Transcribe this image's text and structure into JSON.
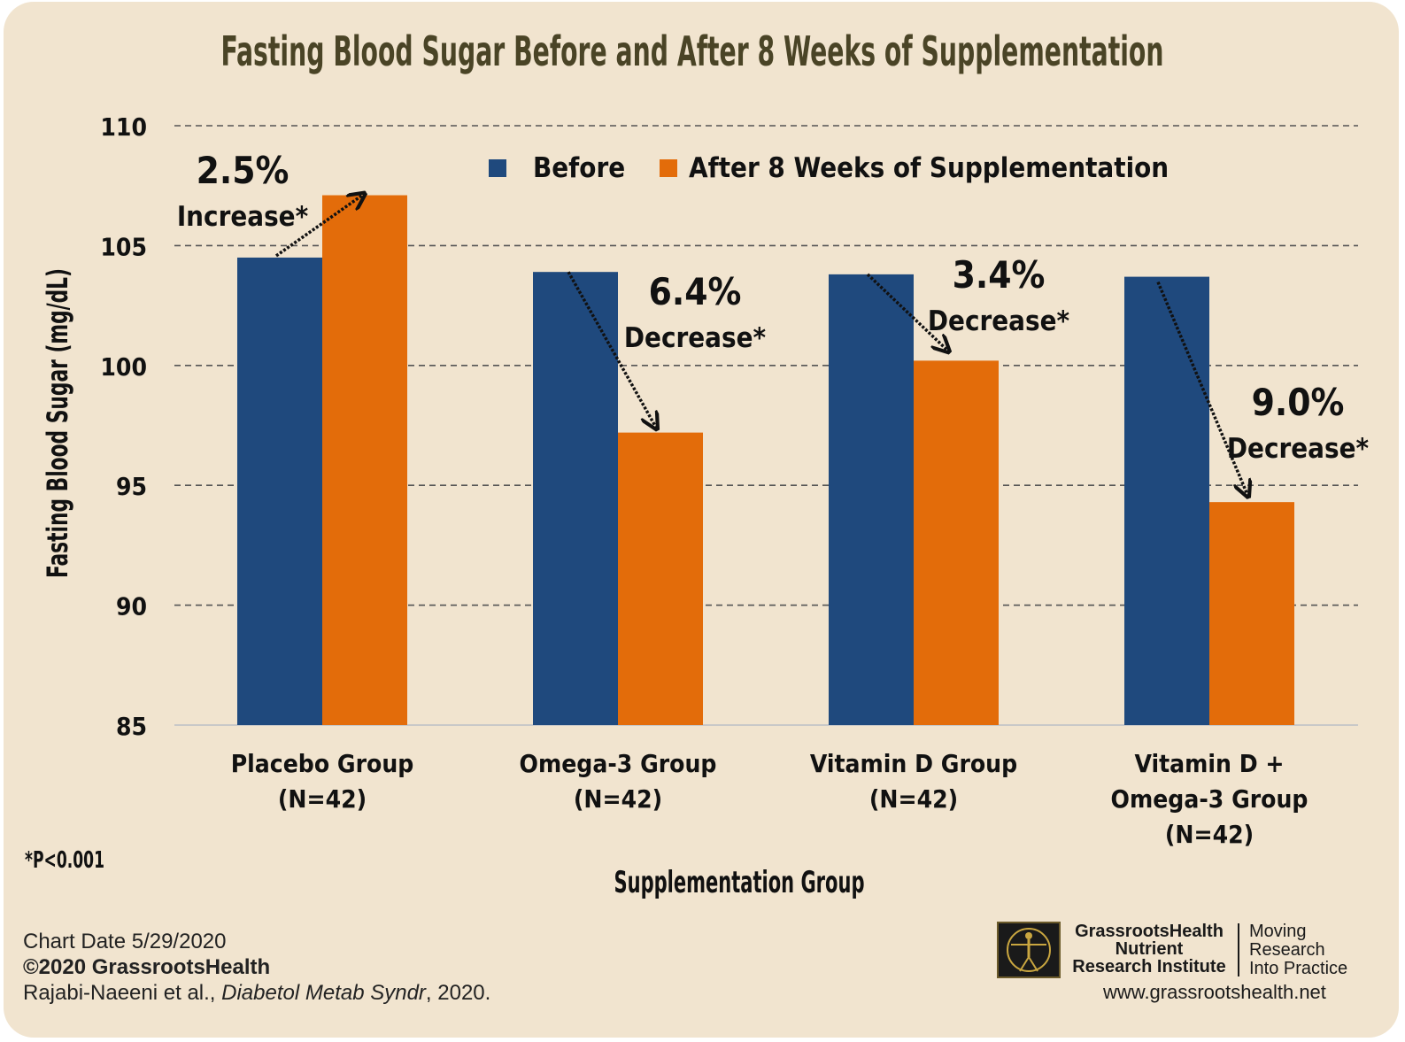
{
  "chart_data": {
    "type": "bar",
    "title": "Fasting Blood Sugar Before and After 8 Weeks of Supplementation",
    "xlabel": "Supplementation Group",
    "ylabel": "Fasting Blood Sugar (mg/dL)",
    "ylim": [
      85,
      110
    ],
    "yticks": [
      "85",
      "90",
      "95",
      "100",
      "105",
      "110"
    ],
    "grid": "horizontal dashed",
    "legend_position": "top-center",
    "categories": [
      [
        "Placebo Group",
        "(N=42)"
      ],
      [
        "Omega-3 Group",
        "(N=42)"
      ],
      [
        "Vitamin D Group",
        "(N=42)"
      ],
      [
        "Vitamin D +",
        "Omega-3 Group",
        "(N=42)"
      ]
    ],
    "series": [
      {
        "name": "Before",
        "color": "#1f497d",
        "values": [
          104.5,
          103.9,
          103.8,
          103.7
        ]
      },
      {
        "name": "After 8 Weeks of Supplementation",
        "color": "#e36c0a",
        "values": [
          107.1,
          97.2,
          100.2,
          94.3
        ]
      }
    ],
    "annotations": [
      {
        "pct": "2.5%",
        "label": "Increase*"
      },
      {
        "pct": "6.4%",
        "label": "Decrease*"
      },
      {
        "pct": "3.4%",
        "label": "Decrease*"
      },
      {
        "pct": "9.0%",
        "label": "Decrease*"
      }
    ],
    "footnote": "*P<0.001"
  },
  "footer": {
    "chart_date": "Chart Date 5/29/2020",
    "copyright": "©2020 GrassrootsHealth",
    "citation_authors": "Rajabi-Naeeni et al., ",
    "citation_journal": "Diabetol Metab Syndr",
    "citation_year": ", 2020."
  },
  "logo": {
    "line1": "GrassrootsHealth",
    "line2": "Nutrient",
    "line3": "Research Institute",
    "tag1": "Moving",
    "tag2": "Research",
    "tag3": "Into Practice",
    "url": "www.grassrootshealth.net"
  },
  "colors": {
    "background": "#f1e4cf",
    "title": "#4a4426",
    "text": "#111111"
  }
}
